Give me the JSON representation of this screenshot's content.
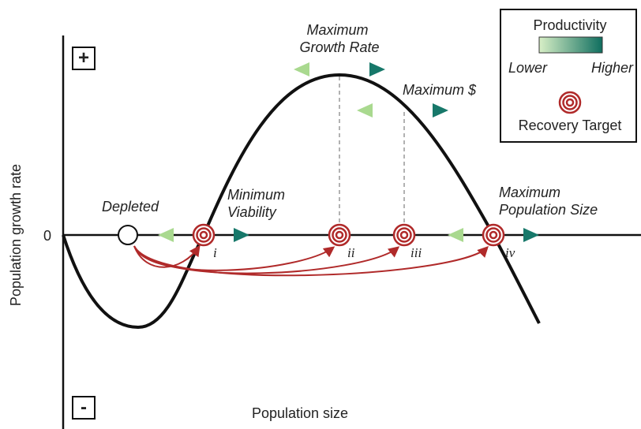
{
  "axes": {
    "plus": "+",
    "minus": "-",
    "zero": "0",
    "y_label": "Population growth rate",
    "x_label": "Population size"
  },
  "labels": {
    "depleted": "Depleted",
    "minimum_viability": [
      "Minimum",
      "Viability"
    ],
    "maximum_growth_rate": [
      "Maximum",
      "Growth Rate"
    ],
    "maximum_dollar": "Maximum $",
    "maximum_population_size": [
      "Maximum",
      "Population Size"
    ]
  },
  "targets": [
    "i",
    "ii",
    "iii",
    "iv"
  ],
  "legend": {
    "title": "Productivity",
    "lower": "Lower",
    "higher": "Higher",
    "target": "Recovery Target"
  }
}
